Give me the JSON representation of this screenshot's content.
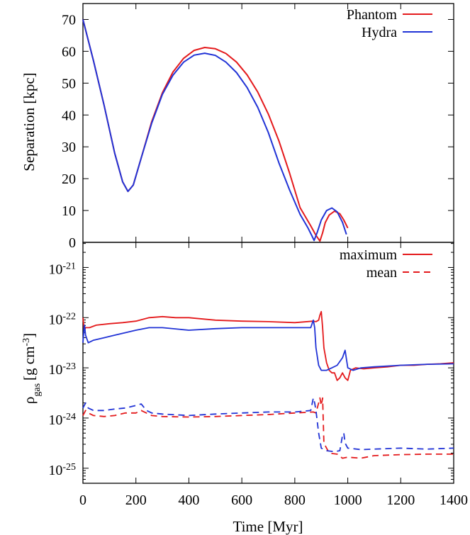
{
  "colors": {
    "phantom": "#e41a1c",
    "hydra": "#2133d6",
    "axis": "#000000"
  },
  "chart_data": [
    {
      "type": "line",
      "panel": "top",
      "ylabel": "Separation [kpc]",
      "xlim": [
        0,
        1400
      ],
      "ylim": [
        0,
        75
      ],
      "yticks": [
        0,
        10,
        20,
        30,
        40,
        50,
        60,
        70
      ],
      "ytick_labels": [
        "0",
        "10",
        "20",
        "30",
        "40",
        "50",
        "60",
        "70"
      ],
      "legend": {
        "placement": "top-right",
        "entries": [
          "Phantom",
          "Hydra"
        ]
      },
      "series": [
        {
          "name": "Phantom",
          "color": "#e41a1c",
          "style": "solid",
          "x": [
            0,
            40,
            80,
            120,
            150,
            170,
            190,
            220,
            260,
            300,
            340,
            380,
            420,
            460,
            500,
            540,
            580,
            620,
            660,
            700,
            740,
            780,
            820,
            860,
            880,
            895,
            905,
            915,
            930,
            950,
            970,
            985,
            1000
          ],
          "y": [
            70,
            57,
            43,
            28,
            19,
            16,
            18,
            26.5,
            38,
            47,
            53.5,
            57.8,
            60.3,
            61.2,
            60.8,
            59.3,
            56.6,
            52.6,
            47.2,
            40.3,
            31.9,
            21.8,
            10.9,
            5.2,
            2.2,
            0.4,
            3,
            6.2,
            8.6,
            9.8,
            9,
            7,
            4.5
          ]
        },
        {
          "name": "Hydra",
          "color": "#2133d6",
          "style": "solid",
          "x": [
            0,
            40,
            80,
            120,
            150,
            170,
            190,
            220,
            260,
            300,
            340,
            380,
            420,
            460,
            500,
            540,
            580,
            620,
            660,
            700,
            740,
            780,
            820,
            850,
            865,
            873,
            885,
            900,
            920,
            940,
            960,
            980,
            995
          ],
          "y": [
            70,
            57,
            43,
            28,
            19,
            16,
            18,
            26.5,
            37.5,
            46.5,
            52.5,
            56.6,
            58.8,
            59.4,
            58.7,
            56.6,
            53.3,
            48.6,
            42.4,
            34.5,
            25,
            16.5,
            8.8,
            4.5,
            2,
            0.6,
            3.2,
            7,
            10,
            10.8,
            9.6,
            6.3,
            2.5
          ]
        }
      ]
    },
    {
      "type": "line",
      "panel": "bottom",
      "xlabel": "Time [Myr]",
      "ylabel_main": "ρ",
      "ylabel_sub": "gas",
      "ylabel_unit": "[g cm",
      "ylabel_sup": "-3",
      "ylabel_close": "]",
      "yscale": "log",
      "ylim_log10": [
        -25.3,
        -20.5
      ],
      "xlim": [
        0,
        1400
      ],
      "xticks": [
        0,
        200,
        400,
        600,
        800,
        1000,
        1200,
        1400
      ],
      "xtick_labels": [
        "0",
        "200",
        "400",
        "600",
        "800",
        "1000",
        "1200",
        "1400"
      ],
      "yticks_log10": [
        -21,
        -22,
        -23,
        -24,
        -25
      ],
      "ytick_base": "10",
      "ytick_exponents": [
        "-21",
        "-22",
        "-23",
        "-24",
        "-25"
      ],
      "legend": {
        "placement": "top-right",
        "entries": [
          "maximum",
          "mean"
        ]
      },
      "series": [
        {
          "name": "Phantom maximum",
          "color": "#e41a1c",
          "style": "solid",
          "x": [
            0,
            5,
            10,
            25,
            50,
            100,
            150,
            200,
            250,
            300,
            350,
            400,
            500,
            600,
            700,
            800,
            870,
            880,
            890,
            895,
            900,
            905,
            910,
            920,
            930,
            940,
            950,
            960,
            970,
            980,
            990,
            1000,
            1010,
            1030,
            1060,
            1100,
            1150,
            1200,
            1250,
            1300,
            1350,
            1400
          ],
          "y_log10": [
            -22,
            -22.25,
            -22.2,
            -22.2,
            -22.15,
            -22.12,
            -22.1,
            -22.07,
            -22,
            -21.98,
            -22,
            -22,
            -22.05,
            -22.07,
            -22.08,
            -22.1,
            -22.07,
            -22.08,
            -22.05,
            -21.95,
            -21.88,
            -22.2,
            -22.6,
            -22.9,
            -23.05,
            -23.1,
            -23.1,
            -23.25,
            -23.2,
            -23.1,
            -23.2,
            -23.25,
            -23.05,
            -23.0,
            -23.02,
            -23.0,
            -22.98,
            -22.95,
            -22.95,
            -22.93,
            -22.92,
            -22.9
          ]
        },
        {
          "name": "Hydra maximum",
          "color": "#2133d6",
          "style": "solid",
          "x": [
            0,
            3,
            6,
            10,
            20,
            40,
            80,
            120,
            160,
            200,
            250,
            300,
            400,
            500,
            600,
            700,
            800,
            860,
            870,
            875,
            880,
            890,
            900,
            920,
            940,
            960,
            980,
            990,
            1000,
            1020,
            1050,
            1100,
            1200,
            1300,
            1400
          ],
          "y_log10": [
            -22.5,
            -22.3,
            -22.15,
            -22.35,
            -22.5,
            -22.45,
            -22.4,
            -22.35,
            -22.3,
            -22.25,
            -22.2,
            -22.2,
            -22.25,
            -22.22,
            -22.2,
            -22.2,
            -22.2,
            -22.2,
            -22.05,
            -22.2,
            -22.6,
            -22.95,
            -23.05,
            -23.05,
            -23.0,
            -22.95,
            -22.8,
            -22.65,
            -23.0,
            -23.05,
            -23.0,
            -22.98,
            -22.95,
            -22.93,
            -22.92
          ]
        },
        {
          "name": "Phantom mean",
          "color": "#e41a1c",
          "style": "dashed",
          "x": [
            0,
            10,
            20,
            40,
            80,
            120,
            160,
            200,
            220,
            260,
            300,
            400,
            500,
            600,
            700,
            800,
            870,
            880,
            890,
            895,
            900,
            905,
            910,
            930,
            960,
            980,
            1000,
            1050,
            1100,
            1200,
            1300,
            1400
          ],
          "y_log10": [
            -23.95,
            -23.85,
            -23.9,
            -23.95,
            -23.97,
            -23.95,
            -23.9,
            -23.9,
            -23.85,
            -23.95,
            -23.97,
            -23.98,
            -23.97,
            -23.95,
            -23.93,
            -23.9,
            -23.88,
            -23.9,
            -23.7,
            -23.6,
            -23.75,
            -23.6,
            -24.5,
            -24.7,
            -24.72,
            -24.8,
            -24.78,
            -24.8,
            -24.75,
            -24.73,
            -24.72,
            -24.72
          ]
        },
        {
          "name": "Hydra mean",
          "color": "#2133d6",
          "style": "dashed",
          "x": [
            0,
            10,
            20,
            40,
            80,
            120,
            160,
            200,
            220,
            240,
            260,
            300,
            400,
            500,
            600,
            700,
            800,
            860,
            870,
            875,
            880,
            890,
            900,
            920,
            950,
            970,
            980,
            985,
            990,
            1000,
            1050,
            1100,
            1200,
            1300,
            1400
          ],
          "y_log10": [
            -23.8,
            -23.7,
            -23.8,
            -23.85,
            -23.85,
            -23.82,
            -23.8,
            -23.75,
            -23.72,
            -23.85,
            -23.9,
            -23.92,
            -23.95,
            -23.92,
            -23.9,
            -23.88,
            -23.88,
            -23.85,
            -23.6,
            -23.7,
            -23.85,
            -24.3,
            -24.6,
            -24.65,
            -24.67,
            -24.65,
            -24.35,
            -24.3,
            -24.5,
            -24.6,
            -24.63,
            -24.62,
            -24.6,
            -24.62,
            -24.6
          ]
        }
      ]
    }
  ]
}
